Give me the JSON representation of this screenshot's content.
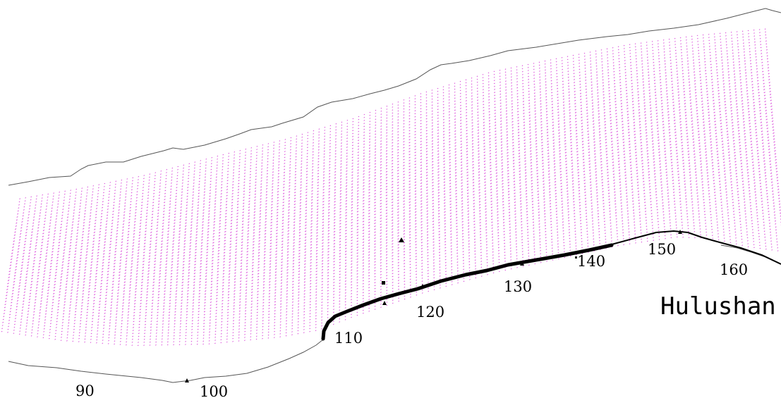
{
  "map": {
    "place_name": "Hulushan",
    "distance_labels": [
      "90",
      "100",
      "110",
      "120",
      "130",
      "140",
      "150",
      "160"
    ],
    "colors": {
      "background": "#ffffff",
      "vector_field": "#d63ad6",
      "bank_line": "#555555",
      "coastline": "#000000",
      "markers": "#000000"
    },
    "icons": {
      "station_marker": "triangle-marker-icon",
      "point_marker": "square-marker-icon"
    }
  }
}
